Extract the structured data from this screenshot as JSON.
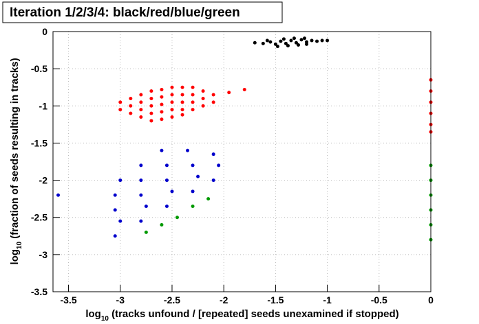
{
  "chart_data": {
    "type": "scatter",
    "title": "Iteration 1/2/3/4: black/red/blue/green",
    "x_label": {
      "base": "log",
      "subscript": "10",
      "rest": " (tracks unfound / [repeated] seeds unexamined if stopped)"
    },
    "y_label": {
      "base": "log",
      "subscript": "10",
      "rest": " (fraction of seeds resulting in tracks)"
    },
    "xlim": [
      -3.65,
      0
    ],
    "ylim": [
      -3.5,
      0
    ],
    "xticks": [
      -3.5,
      -3,
      -2.5,
      -2,
      -1.5,
      -1,
      -0.5,
      0
    ],
    "yticks": [
      -3.5,
      -3,
      -2.5,
      -2,
      -1.5,
      -1,
      -0.5,
      0
    ],
    "grid": true,
    "series": [
      {
        "name": "black",
        "color": "#000000",
        "x": [
          -1.62,
          -1.55,
          -1.5,
          -1.45,
          -1.4,
          -1.35,
          -1.3,
          -1.25,
          -1.2,
          -1.15,
          -1.1,
          -1.05,
          -1.48,
          -1.38,
          -1.28,
          -1.2,
          -1.58,
          -1.42,
          -1.32,
          -1.22,
          -1.7,
          -1.0
        ],
        "y": [
          -0.16,
          -0.14,
          -0.17,
          -0.13,
          -0.16,
          -0.12,
          -0.15,
          -0.11,
          -0.14,
          -0.12,
          -0.13,
          -0.12,
          -0.2,
          -0.19,
          -0.18,
          -0.17,
          -0.12,
          -0.1,
          -0.09,
          -0.09,
          -0.15,
          -0.12
        ]
      },
      {
        "name": "red",
        "color": "#ff0000",
        "x": [
          -3.0,
          -3.0,
          -2.9,
          -2.9,
          -2.9,
          -2.8,
          -2.8,
          -2.8,
          -2.8,
          -2.7,
          -2.7,
          -2.7,
          -2.7,
          -2.7,
          -2.6,
          -2.6,
          -2.6,
          -2.6,
          -2.6,
          -2.5,
          -2.5,
          -2.5,
          -2.5,
          -2.5,
          -2.4,
          -2.4,
          -2.4,
          -2.4,
          -2.4,
          -2.3,
          -2.3,
          -2.3,
          -2.3,
          -2.2,
          -2.2,
          -2.2,
          -2.1,
          -2.1,
          -1.95,
          -1.8,
          0,
          0,
          0,
          0,
          0,
          0
        ],
        "y": [
          -0.95,
          -1.05,
          -0.9,
          -1.0,
          -1.1,
          -0.85,
          -0.95,
          -1.05,
          -1.15,
          -0.8,
          -0.9,
          -1.0,
          -1.1,
          -1.2,
          -0.78,
          -0.88,
          -0.98,
          -1.08,
          -1.18,
          -0.75,
          -0.85,
          -0.95,
          -1.05,
          -1.15,
          -0.75,
          -0.85,
          -0.95,
          -1.05,
          -1.12,
          -0.75,
          -0.85,
          -0.95,
          -1.05,
          -0.8,
          -0.9,
          -1.0,
          -0.85,
          -0.95,
          -0.82,
          -0.78,
          -0.65,
          -0.8,
          -0.95,
          -1.1,
          -1.25,
          -1.35
        ]
      },
      {
        "name": "blue",
        "color": "#0000cc",
        "x": [
          -3.0,
          -2.8,
          -2.6,
          -3.05,
          -2.8,
          -2.55,
          -2.35,
          -3.05,
          -2.8,
          -2.55,
          -2.3,
          -2.1,
          -3.0,
          -2.75,
          -2.5,
          -2.25,
          -2.05,
          -3.05,
          -2.8,
          -2.55,
          -2.3,
          -2.1,
          -3.6
        ],
        "y": [
          -2.0,
          -1.8,
          -1.6,
          -2.2,
          -2.0,
          -1.8,
          -1.6,
          -2.4,
          -2.2,
          -2.0,
          -1.8,
          -1.65,
          -2.55,
          -2.35,
          -2.15,
          -1.95,
          -1.8,
          -2.75,
          -2.55,
          -2.35,
          -2.15,
          -2.0,
          -2.2
        ]
      },
      {
        "name": "green",
        "color": "#009900",
        "x": [
          -2.75,
          -2.6,
          -2.45,
          -2.3,
          -2.15,
          0,
          0,
          0,
          0,
          0,
          0
        ],
        "y": [
          -2.7,
          -2.6,
          -2.5,
          -2.35,
          -2.25,
          -1.8,
          -2.0,
          -2.2,
          -2.4,
          -2.6,
          -2.8
        ]
      }
    ]
  }
}
